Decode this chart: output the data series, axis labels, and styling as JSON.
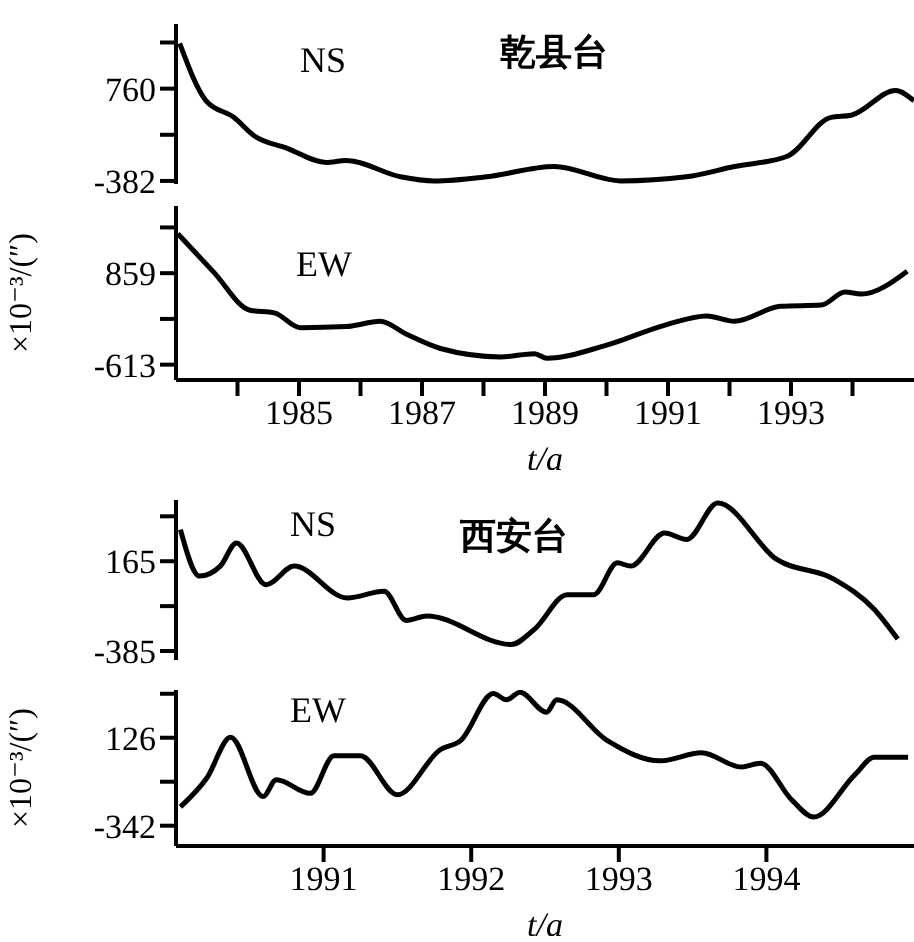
{
  "chart_data": [
    {
      "type": "line",
      "title": "乾县台",
      "xlim": [
        1983,
        1995
      ],
      "ylim": [
        -420,
        1560
      ],
      "yticks": [
        -382,
        {
          "value": 189,
          "label": null
        },
        760,
        {
          "value": 1331,
          "label": null
        }
      ],
      "tick_labels": "y",
      "grid": false,
      "legend": false,
      "marker": "none",
      "line_style": "solid",
      "series": [
        {
          "name": "NS",
          "color": "#000000",
          "x": [
            1983.06,
            1983.49,
            1983.94,
            1984.27,
            1984.8,
            1985.44,
            1985.77,
            1986.65,
            1987.2,
            1988.05,
            1989.15,
            1990.23,
            1991.3,
            1992.08,
            1992.94,
            1993.65,
            1993.98,
            1994.7,
            1995.0
          ],
          "values": [
            1320,
            609,
            405,
            177,
            24,
            -153,
            -128,
            -331,
            -382,
            -331,
            -204,
            -382,
            -331,
            -204,
            -77,
            405,
            431,
            736,
            609
          ]
        }
      ]
    },
    {
      "type": "line",
      "xlabel": "t/a",
      "ylabel": "×10⁻³/(″)",
      "xlim": [
        1983,
        1995
      ],
      "xticks": [
        {
          "value": 1984,
          "label": null
        },
        1985,
        {
          "value": 1986,
          "label": null
        },
        1987,
        {
          "value": 1988,
          "label": null
        },
        1989,
        {
          "value": 1990,
          "label": null
        },
        1991,
        {
          "value": 1992,
          "label": null
        },
        1993,
        {
          "value": 1994,
          "label": null
        }
      ],
      "ylim": [
        -860,
        1940
      ],
      "yticks": [
        -613,
        {
          "value": 123,
          "label": null
        },
        859,
        {
          "value": 1595,
          "label": null
        }
      ],
      "grid": false,
      "legend": false,
      "marker": "none",
      "line_style": "solid",
      "series": [
        {
          "name": "EW",
          "color": "#000000",
          "x": [
            1983.03,
            1983.62,
            1984.2,
            1984.6,
            1985.02,
            1985.77,
            1986.32,
            1986.75,
            1987.3,
            1988.28,
            1988.83,
            1989.03,
            1990.0,
            1990.98,
            1991.63,
            1992.08,
            1992.83,
            1993.49,
            1993.88,
            1994.14,
            1994.89
          ],
          "values": [
            1493,
            868,
            263,
            220,
            -18,
            0,
            85,
            -125,
            -353,
            -488,
            -438,
            -510,
            -300,
            32,
            170,
            85,
            326,
            345,
            555,
            523,
            890
          ]
        }
      ]
    },
    {
      "type": "line",
      "title": "西安台",
      "xlim": [
        1990,
        1995
      ],
      "ylim": [
        -440,
        540
      ],
      "yticks": [
        -385,
        {
          "value": -110,
          "label": null
        },
        165,
        {
          "value": 440,
          "label": null
        }
      ],
      "tick_labels": "y",
      "grid": false,
      "legend": false,
      "marker": "none",
      "line_style": "solid",
      "series": [
        {
          "name": "NS",
          "color": "#000000",
          "x": [
            1990.03,
            1990.16,
            1990.3,
            1990.41,
            1990.61,
            1990.8,
            1991.16,
            1991.41,
            1991.56,
            1991.7,
            1992.27,
            1992.43,
            1992.65,
            1992.83,
            1992.99,
            1993.08,
            1993.31,
            1993.46,
            1993.67,
            1994.07,
            1994.46,
            1994.73,
            1994.89
          ],
          "values": [
            359,
            74,
            135,
            277,
            21,
            135,
            -60,
            -19,
            -198,
            -170,
            -345,
            -251,
            -40,
            -40,
            155,
            135,
            338,
            298,
            521,
            176,
            54,
            -129,
            -312
          ]
        }
      ]
    },
    {
      "type": "line",
      "xlabel": "t/a",
      "ylabel": "×10⁻³/(″)",
      "xlim": [
        1990,
        1995
      ],
      "xticks": [
        1991,
        1992,
        1993,
        1994
      ],
      "ylim": [
        -450,
        380
      ],
      "yticks": [
        -342,
        {
          "value": -108,
          "label": null
        },
        126,
        {
          "value": 360,
          "label": null
        }
      ],
      "grid": false,
      "legend": false,
      "marker": "none",
      "line_style": "solid",
      "series": [
        {
          "name": "EW",
          "color": "#000000",
          "x": [
            1990.03,
            1990.21,
            1990.37,
            1990.59,
            1990.68,
            1990.91,
            1991.07,
            1991.25,
            1991.5,
            1991.79,
            1991.93,
            1992.15,
            1992.24,
            1992.33,
            1992.51,
            1992.58,
            1992.92,
            1993.28,
            1993.56,
            1993.83,
            1993.96,
            1994.17,
            1994.32,
            1994.6,
            1994.73,
            1994.96
          ],
          "values": [
            -242,
            -87,
            129,
            -187,
            -97,
            -170,
            30,
            30,
            -177,
            62,
            112,
            361,
            328,
            368,
            262,
            328,
            112,
            3,
            46,
            -30,
            -10,
            -203,
            -296,
            -70,
            22,
            22
          ]
        }
      ]
    }
  ]
}
